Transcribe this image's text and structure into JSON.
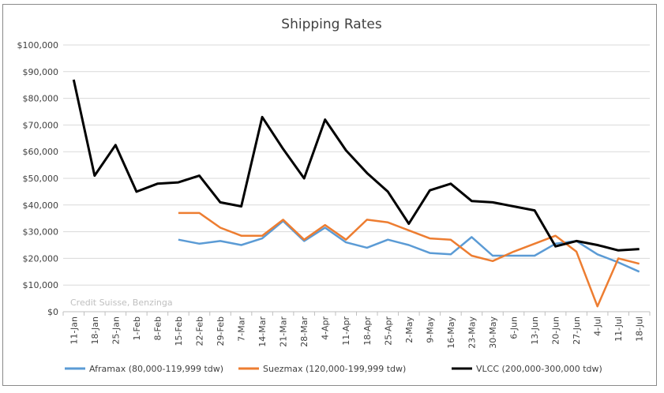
{
  "chart_data": {
    "type": "line",
    "title": "Shipping Rates",
    "source_note": "Credit Suisse, Benzinga",
    "xlabel": "",
    "ylabel": "",
    "ylim": [
      0,
      100000
    ],
    "yticks": [
      "$0",
      "$10,000",
      "$20,000",
      "$30,000",
      "$40,000",
      "$50,000",
      "$60,000",
      "$70,000",
      "$80,000",
      "$90,000",
      "$100,000"
    ],
    "grid": true,
    "legend": "bottom",
    "categories": [
      "11-Jan",
      "18-Jan",
      "25-Jan",
      "1-Feb",
      "8-Feb",
      "15-Feb",
      "22-Feb",
      "29-Feb",
      "7-Mar",
      "14-Mar",
      "21-Mar",
      "28-Mar",
      "4-Apr",
      "11-Apr",
      "18-Apr",
      "25-Apr",
      "2-May",
      "9-May",
      "16-May",
      "23-May",
      "30-May",
      "6-Jun",
      "13-Jun",
      "20-Jun",
      "27-Jun",
      "4-Jul",
      "11-Jul",
      "18-Jul"
    ],
    "series": [
      {
        "name": "Aframax (80,000-119,999 tdw)",
        "color": "#5b9bd5",
        "values": [
          null,
          null,
          null,
          null,
          null,
          27000,
          25500,
          26500,
          25000,
          27500,
          34000,
          26500,
          31500,
          26000,
          24000,
          27000,
          25000,
          22000,
          21500,
          28000,
          21000,
          21000,
          21000,
          25500,
          26500,
          21500,
          18500,
          15000
        ]
      },
      {
        "name": "Suezmax (120,000-199,999 tdw)",
        "color": "#ed7d31",
        "values": [
          null,
          null,
          null,
          null,
          null,
          37000,
          37000,
          31500,
          28500,
          28500,
          34500,
          27000,
          32500,
          27000,
          34500,
          33500,
          30500,
          27500,
          27000,
          21000,
          19000,
          22500,
          25500,
          28500,
          22500,
          2000,
          20000,
          18000
        ]
      },
      {
        "name": "VLCC (200,000-300,000 tdw)",
        "color": "#000000",
        "values": [
          87000,
          51000,
          62500,
          45000,
          48000,
          48500,
          51000,
          41000,
          39500,
          73000,
          61000,
          50000,
          72000,
          60500,
          52000,
          45000,
          33000,
          45500,
          48000,
          41500,
          41000,
          39500,
          38000,
          24500,
          26500,
          25000,
          23000,
          23500
        ]
      }
    ]
  }
}
